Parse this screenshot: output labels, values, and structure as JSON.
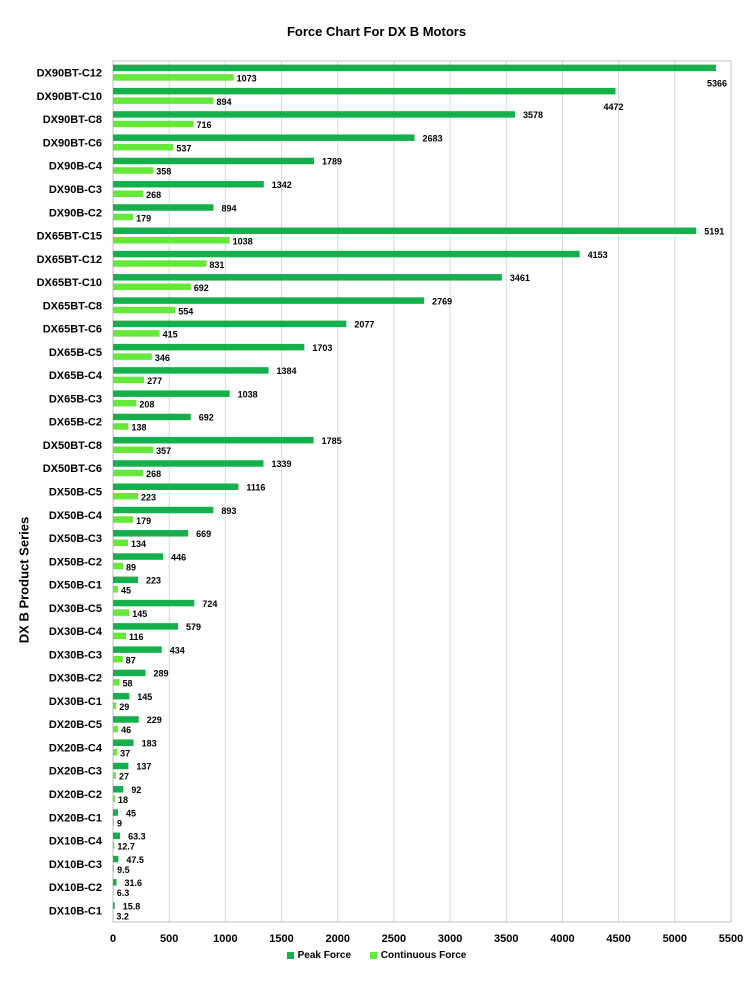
{
  "chart_data": {
    "type": "bar",
    "orientation": "horizontal",
    "title": "Force Chart For DX B Motors",
    "xlabel": "",
    "ylabel": "DX B  Product Series",
    "xlim": [
      0,
      5500
    ],
    "xticks": [
      "0",
      "500",
      "1000",
      "1500",
      "2000",
      "2500",
      "3000",
      "3500",
      "4000",
      "4500",
      "5000",
      "5500"
    ],
    "grid": true,
    "legend_position": "bottom",
    "categories": [
      "DX90BT-C12",
      "DX90BT-C10",
      "DX90BT-C8",
      "DX90BT-C6",
      "DX90B-C4",
      "DX90B-C3",
      "DX90B-C2",
      "DX65BT-C15",
      "DX65BT-C12",
      "DX65BT-C10",
      "DX65BT-C8",
      "DX65BT-C6",
      "DX65B-C5",
      "DX65B-C4",
      "DX65B-C3",
      "DX65B-C2",
      "DX50BT-C8",
      "DX50BT-C6",
      "DX50B-C5",
      "DX50B-C4",
      "DX50B-C3",
      "DX50B-C2",
      "DX50B-C1",
      "DX30B-C5",
      "DX30B-C4",
      "DX30B-C3",
      "DX30B-C2",
      "DX30B-C1",
      "DX20B-C5",
      "DX20B-C4",
      "DX20B-C3",
      "DX20B-C2",
      "DX20B-C1",
      "DX10B-C4",
      "DX10B-C3",
      "DX10B-C2",
      "DX10B-C1"
    ],
    "series": [
      {
        "name": "Peak Force",
        "color": "#14b04c",
        "values": [
          5366,
          4472,
          3578,
          2683,
          1789,
          1342,
          894,
          5191,
          4153,
          3461,
          2769,
          2077,
          1703,
          1384,
          1038,
          692,
          1785,
          1339,
          1116,
          893,
          669,
          446,
          223,
          724,
          579,
          434,
          289,
          145,
          229,
          183,
          137,
          92,
          45,
          63.3,
          47.5,
          31.6,
          15.8
        ],
        "labels": [
          "5366",
          "4472",
          "3578",
          "2683",
          "1789",
          "1342",
          "894",
          "5191",
          "4153",
          "3461",
          "2769",
          "2077",
          "1703",
          "1384",
          "1038",
          "692",
          "1785",
          "1339",
          "1116",
          "893",
          "669",
          "446",
          "223",
          "724",
          "579",
          "434",
          "289",
          "145",
          "229",
          "183",
          "137",
          "92",
          "45",
          "63.3",
          "47.5",
          "31.6",
          "15.8"
        ]
      },
      {
        "name": "Continuous Force",
        "color": "#66e83a",
        "values": [
          1073,
          894,
          716,
          537,
          358,
          268,
          179,
          1038,
          831,
          692,
          554,
          415,
          346,
          277,
          208,
          138,
          357,
          268,
          223,
          179,
          134,
          89,
          45,
          145,
          116,
          87,
          58,
          29,
          46,
          37,
          27,
          18,
          9,
          12.7,
          9.5,
          6.3,
          3.2
        ],
        "labels": [
          "1073",
          "894",
          "716",
          "537",
          "358",
          "268",
          "179",
          "1038",
          "831",
          "692",
          "554",
          "415",
          "346",
          "277",
          "208",
          "138",
          "357",
          "268",
          "223",
          "179",
          "134",
          "89",
          "45",
          "145",
          "116",
          "87",
          "58",
          "29",
          "46",
          "37",
          "27",
          "18",
          "9",
          "12.7",
          "9.5",
          "6.3",
          "3.2"
        ]
      }
    ]
  }
}
